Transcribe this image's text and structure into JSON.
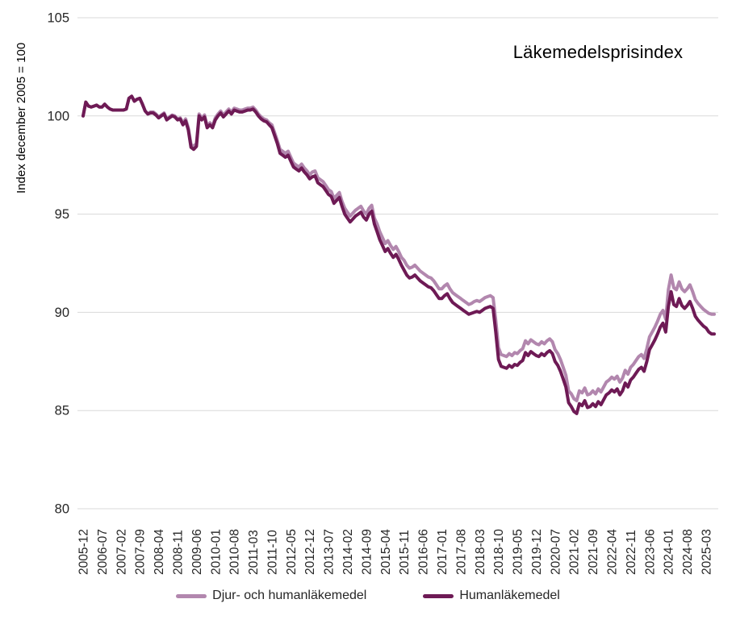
{
  "title": "Läkemedelsprisindex",
  "chart_data": {
    "type": "line",
    "title": "Läkemedelsprisindex",
    "xlabel": "",
    "ylabel": "Index december 2005 = 100",
    "ylim": [
      80,
      105
    ],
    "y_ticks": [
      80,
      85,
      90,
      95,
      100,
      105
    ],
    "grid": "horizontal-only",
    "gridline_color": "#D9D9D9",
    "tick_label_color": "#262626",
    "legend_position": "bottom-center",
    "x_start_month": "2005-12",
    "x_end_month": "2025-06",
    "x_tick_every_n_months": 7,
    "x_tick_labels": [
      "2005-12",
      "2006-07",
      "2007-02",
      "2007-09",
      "2008-04",
      "2008-11",
      "2009-06",
      "2010-01",
      "2010-08",
      "2011-03",
      "2011-10",
      "2012-05",
      "2012-12",
      "2013-07",
      "2014-02",
      "2014-09",
      "2015-04",
      "2015-11",
      "2016-06",
      "2017-01",
      "2017-08",
      "2018-03",
      "2018-10",
      "2019-05",
      "2019-12",
      "2020-07",
      "2021-02",
      "2021-09",
      "2022-04",
      "2022-11",
      "2023-06",
      "2024-01",
      "2024-08",
      "2025-03"
    ],
    "series": [
      {
        "name": "Djur- och humanläkemedel",
        "color": "#B287AE",
        "line_width": 4,
        "values": [
          100.0,
          100.7,
          100.5,
          100.45,
          100.5,
          100.55,
          100.45,
          100.45,
          100.6,
          100.45,
          100.35,
          100.3,
          100.3,
          100.3,
          100.3,
          100.3,
          100.35,
          100.9,
          101.0,
          100.75,
          100.85,
          100.9,
          100.6,
          100.25,
          100.1,
          100.2,
          100.2,
          100.1,
          99.95,
          100.05,
          100.15,
          99.85,
          99.95,
          100.05,
          100.0,
          99.85,
          99.9,
          99.65,
          99.85,
          99.4,
          98.55,
          98.45,
          98.6,
          100.1,
          99.9,
          100.05,
          99.5,
          99.65,
          99.5,
          99.9,
          100.1,
          100.25,
          100.05,
          100.2,
          100.35,
          100.2,
          100.4,
          100.35,
          100.3,
          100.3,
          100.35,
          100.4,
          100.4,
          100.45,
          100.3,
          100.1,
          99.95,
          99.85,
          99.8,
          99.65,
          99.55,
          99.15,
          98.75,
          98.3,
          98.2,
          98.1,
          98.2,
          97.9,
          97.6,
          97.5,
          97.4,
          97.55,
          97.35,
          97.2,
          97.0,
          97.15,
          97.2,
          96.85,
          96.75,
          96.65,
          96.45,
          96.25,
          96.15,
          95.8,
          95.95,
          96.1,
          95.65,
          95.3,
          95.1,
          94.9,
          95.05,
          95.2,
          95.3,
          95.4,
          95.15,
          95.0,
          95.3,
          95.45,
          94.8,
          94.5,
          94.1,
          93.8,
          93.5,
          93.65,
          93.4,
          93.2,
          93.35,
          93.1,
          92.8,
          92.65,
          92.4,
          92.25,
          92.3,
          92.4,
          92.25,
          92.1,
          92.0,
          91.9,
          91.8,
          91.75,
          91.6,
          91.4,
          91.2,
          91.2,
          91.35,
          91.45,
          91.2,
          91.0,
          90.9,
          90.8,
          90.7,
          90.6,
          90.5,
          90.4,
          90.45,
          90.55,
          90.6,
          90.55,
          90.65,
          90.75,
          90.8,
          90.85,
          90.75,
          89.6,
          88.2,
          87.85,
          87.8,
          87.75,
          87.9,
          87.8,
          87.95,
          87.9,
          88.05,
          88.15,
          88.55,
          88.4,
          88.6,
          88.5,
          88.4,
          88.35,
          88.5,
          88.4,
          88.55,
          88.65,
          88.5,
          88.1,
          87.9,
          87.6,
          87.2,
          86.8,
          86.0,
          85.85,
          85.6,
          85.5,
          86.0,
          85.9,
          86.15,
          85.8,
          85.85,
          86.0,
          85.85,
          86.1,
          85.95,
          86.2,
          86.45,
          86.55,
          86.7,
          86.6,
          86.75,
          86.45,
          86.65,
          87.05,
          86.85,
          87.2,
          87.35,
          87.55,
          87.75,
          87.85,
          87.65,
          88.15,
          88.75,
          89.0,
          89.25,
          89.55,
          89.9,
          90.1,
          89.65,
          91.15,
          91.9,
          91.25,
          91.15,
          91.55,
          91.2,
          91.05,
          91.2,
          91.4,
          91.05,
          90.65,
          90.45,
          90.3,
          90.15,
          90.05,
          89.95,
          89.9,
          89.9
        ]
      },
      {
        "name": "Humanläkemedel",
        "color": "#6E1A55",
        "line_width": 4,
        "values": [
          100.0,
          100.7,
          100.5,
          100.45,
          100.5,
          100.55,
          100.45,
          100.45,
          100.6,
          100.45,
          100.35,
          100.3,
          100.3,
          100.3,
          100.3,
          100.3,
          100.35,
          100.9,
          101.0,
          100.75,
          100.85,
          100.9,
          100.6,
          100.25,
          100.1,
          100.15,
          100.15,
          100.05,
          99.9,
          100.0,
          100.1,
          99.8,
          99.9,
          100.0,
          99.95,
          99.8,
          99.85,
          99.55,
          99.75,
          99.3,
          98.4,
          98.3,
          98.45,
          100.0,
          99.8,
          99.95,
          99.4,
          99.55,
          99.4,
          99.8,
          100.0,
          100.15,
          99.95,
          100.1,
          100.25,
          100.1,
          100.3,
          100.25,
          100.2,
          100.2,
          100.25,
          100.3,
          100.3,
          100.35,
          100.2,
          100.0,
          99.85,
          99.75,
          99.7,
          99.55,
          99.4,
          99.0,
          98.6,
          98.1,
          98.0,
          97.9,
          98.0,
          97.7,
          97.4,
          97.3,
          97.2,
          97.35,
          97.15,
          97.0,
          96.8,
          96.9,
          96.95,
          96.6,
          96.5,
          96.4,
          96.2,
          96.0,
          95.9,
          95.55,
          95.7,
          95.85,
          95.4,
          95.0,
          94.8,
          94.6,
          94.75,
          94.9,
          95.0,
          95.1,
          94.85,
          94.7,
          95.0,
          95.15,
          94.5,
          94.1,
          93.7,
          93.4,
          93.1,
          93.25,
          93.0,
          92.8,
          92.95,
          92.7,
          92.4,
          92.15,
          91.9,
          91.75,
          91.8,
          91.9,
          91.75,
          91.6,
          91.5,
          91.4,
          91.3,
          91.25,
          91.1,
          90.9,
          90.7,
          90.7,
          90.85,
          90.95,
          90.7,
          90.5,
          90.4,
          90.3,
          90.2,
          90.1,
          90.0,
          89.9,
          89.95,
          90.0,
          90.05,
          90.0,
          90.1,
          90.2,
          90.25,
          90.3,
          90.2,
          89.0,
          87.6,
          87.25,
          87.2,
          87.15,
          87.3,
          87.2,
          87.35,
          87.3,
          87.45,
          87.55,
          87.95,
          87.8,
          88.0,
          87.9,
          87.8,
          87.75,
          87.9,
          87.8,
          87.95,
          88.05,
          87.9,
          87.5,
          87.3,
          87.0,
          86.6,
          86.2,
          85.4,
          85.2,
          84.95,
          84.85,
          85.35,
          85.25,
          85.5,
          85.15,
          85.2,
          85.35,
          85.2,
          85.45,
          85.3,
          85.55,
          85.8,
          85.9,
          86.05,
          85.95,
          86.1,
          85.8,
          86.0,
          86.4,
          86.2,
          86.55,
          86.7,
          86.9,
          87.1,
          87.2,
          87.0,
          87.5,
          88.1,
          88.35,
          88.6,
          88.9,
          89.25,
          89.45,
          89.0,
          90.3,
          91.05,
          90.4,
          90.3,
          90.7,
          90.35,
          90.2,
          90.35,
          90.55,
          90.2,
          89.8,
          89.6,
          89.45,
          89.3,
          89.2,
          89.0,
          88.9,
          88.9
        ]
      }
    ]
  }
}
